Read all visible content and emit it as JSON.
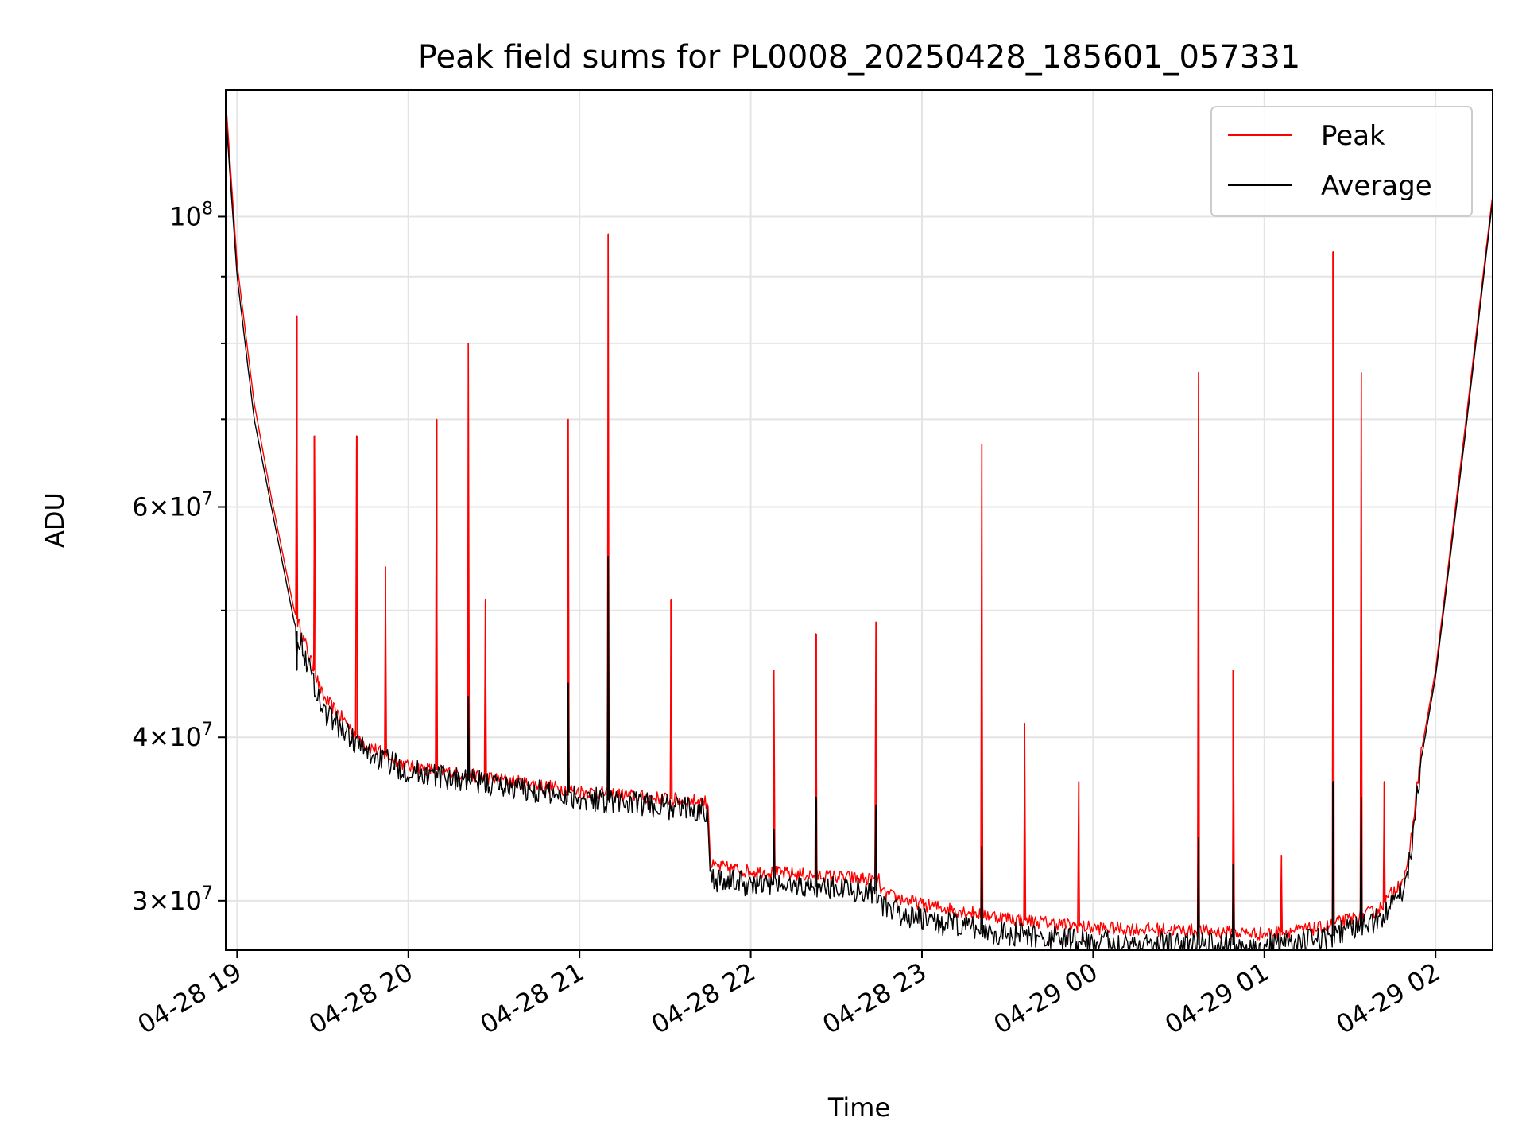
{
  "chart_data": {
    "type": "line",
    "title": "Peak field sums for PL0008_20250428_185601_057331",
    "xlabel": "Time",
    "ylabel": "ADU",
    "x_axis": {
      "kind": "time",
      "range": [
        "04-28 18:56",
        "04-29 02:20"
      ],
      "ticks": [
        "04-28 19:00",
        "04-28 20:00",
        "04-28 21:00",
        "04-28 22:00",
        "04-28 23:00",
        "04-29 00:00",
        "04-29 01:00",
        "04-29 02:00"
      ],
      "tick_labels": [
        "04-28 19",
        "04-28 20",
        "04-28 21",
        "04-28 22",
        "04-28 23",
        "04-29 00",
        "04-29 01",
        "04-29 02"
      ],
      "tick_label_rotation_deg": 30
    },
    "y_axis": {
      "scale": "log",
      "range": [
        27500000,
        125000000
      ],
      "major_ticks": [
        {
          "value": 30000000,
          "mantissa": "3",
          "exponent": "7"
        },
        {
          "value": 40000000,
          "mantissa": "4",
          "exponent": "7"
        },
        {
          "value": 60000000,
          "mantissa": "6",
          "exponent": "7"
        },
        {
          "value": 100000000,
          "mantissa": "",
          "exponent": "8"
        }
      ],
      "minor_ticks": [
        50000000,
        70000000,
        80000000,
        90000000
      ]
    },
    "grid": true,
    "legend": {
      "placement": "top-right",
      "entries": [
        "Peak",
        "Average"
      ]
    },
    "series": [
      {
        "name": "Peak",
        "color": "#ff0000",
        "x": [
          "04-28 18:56",
          "04-28 19:00",
          "04-28 19:06",
          "04-28 19:12",
          "04-28 19:20",
          "04-28 19:30",
          "04-28 19:45",
          "04-28 20:00",
          "04-28 20:30",
          "04-28 21:00",
          "04-28 21:30",
          "04-28 21:45",
          "04-28 21:46",
          "04-28 22:00",
          "04-28 22:30",
          "04-28 22:45",
          "04-28 22:46",
          "04-28 23:00",
          "04-28 23:30",
          "04-29 00:00",
          "04-29 00:30",
          "04-29 00:45",
          "04-29 01:00",
          "04-29 01:20",
          "04-29 01:40",
          "04-29 01:50",
          "04-29 01:55",
          "04-29 02:00",
          "04-29 02:10",
          "04-29 02:20"
        ],
        "y": [
          123000000,
          92000000,
          72000000,
          61000000,
          50000000,
          43000000,
          39500000,
          38000000,
          37200000,
          36400000,
          35900000,
          35700000,
          31900000,
          31600000,
          31300000,
          31100000,
          30400000,
          29800000,
          29100000,
          28600000,
          28500000,
          28400000,
          28300000,
          28600000,
          29500000,
          31500000,
          39000000,
          45000000,
          68000000,
          104000000
        ],
        "spikes": [
          {
            "x": "04-28 19:21",
            "y": 84000000
          },
          {
            "x": "04-28 19:27",
            "y": 68000000
          },
          {
            "x": "04-28 19:42",
            "y": 68000000
          },
          {
            "x": "04-28 19:52",
            "y": 54000000
          },
          {
            "x": "04-28 20:10",
            "y": 70000000
          },
          {
            "x": "04-28 20:21",
            "y": 80000000
          },
          {
            "x": "04-28 20:27",
            "y": 51000000
          },
          {
            "x": "04-28 20:56",
            "y": 70000000
          },
          {
            "x": "04-28 21:10",
            "y": 97000000
          },
          {
            "x": "04-28 21:32",
            "y": 51000000
          },
          {
            "x": "04-28 22:08",
            "y": 45000000
          },
          {
            "x": "04-28 22:23",
            "y": 48000000
          },
          {
            "x": "04-28 22:44",
            "y": 49000000
          },
          {
            "x": "04-28 23:21",
            "y": 67000000
          },
          {
            "x": "04-28 23:36",
            "y": 41000000
          },
          {
            "x": "04-28 23:55",
            "y": 37000000
          },
          {
            "x": "04-29 00:37",
            "y": 76000000
          },
          {
            "x": "04-29 00:49",
            "y": 45000000
          },
          {
            "x": "04-29 01:06",
            "y": 32500000
          },
          {
            "x": "04-29 01:24",
            "y": 94000000
          },
          {
            "x": "04-29 01:34",
            "y": 76000000
          },
          {
            "x": "04-29 01:42",
            "y": 37000000
          }
        ]
      },
      {
        "name": "Average",
        "color": "#000000",
        "x": [
          "04-28 18:56",
          "04-28 19:00",
          "04-28 19:06",
          "04-28 19:12",
          "04-28 19:20",
          "04-28 19:30",
          "04-28 19:45",
          "04-28 20:00",
          "04-28 20:30",
          "04-28 21:00",
          "04-28 21:30",
          "04-28 21:45",
          "04-28 21:46",
          "04-28 22:00",
          "04-28 22:30",
          "04-28 22:45",
          "04-28 22:46",
          "04-28 23:00",
          "04-28 23:30",
          "04-29 00:00",
          "04-29 00:30",
          "04-29 00:45",
          "04-29 01:00",
          "04-29 01:20",
          "04-29 01:40",
          "04-29 01:50",
          "04-29 01:55",
          "04-29 02:00",
          "04-29 02:10",
          "04-29 02:20"
        ],
        "y": [
          120000000,
          90000000,
          70000000,
          60000000,
          49000000,
          42000000,
          39000000,
          37700000,
          36800000,
          36000000,
          35400000,
          35200000,
          31200000,
          30900000,
          30700000,
          30500000,
          29600000,
          29000000,
          28300000,
          27900000,
          27800000,
          27750000,
          27700000,
          28000000,
          29000000,
          31000000,
          38500000,
          44500000,
          67000000,
          103000000
        ],
        "spikes": [
          {
            "x": "04-28 19:21",
            "y": 45000000
          },
          {
            "x": "04-28 20:21",
            "y": 43000000
          },
          {
            "x": "04-28 20:56",
            "y": 44000000
          },
          {
            "x": "04-28 21:10",
            "y": 55000000
          },
          {
            "x": "04-28 22:08",
            "y": 34000000
          },
          {
            "x": "04-28 22:23",
            "y": 36000000
          },
          {
            "x": "04-28 22:44",
            "y": 35500000
          },
          {
            "x": "04-28 23:21",
            "y": 33000000
          },
          {
            "x": "04-29 00:37",
            "y": 33500000
          },
          {
            "x": "04-29 00:49",
            "y": 32000000
          },
          {
            "x": "04-29 01:24",
            "y": 37000000
          },
          {
            "x": "04-29 01:34",
            "y": 36000000
          }
        ]
      }
    ]
  }
}
